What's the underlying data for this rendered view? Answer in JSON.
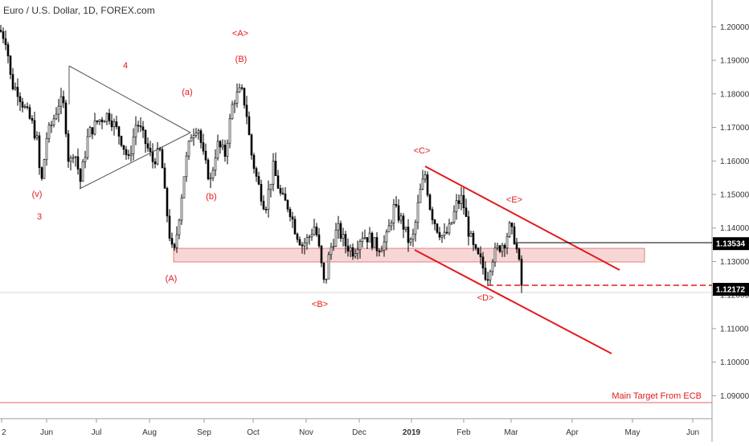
{
  "chart_data": {
    "type": "candlestick",
    "title": "Euro / U.S. Dollar, 1D, FOREX.com",
    "xlabels": [
      "2",
      "Jun",
      "Jul",
      "Aug",
      "Sep",
      "Oct",
      "Nov",
      "Dec",
      "2019",
      "Feb",
      "Mar",
      "Apr",
      "May",
      "Jun"
    ],
    "yticks": [
      "1.20000",
      "1.19000",
      "1.18000",
      "1.17000",
      "1.16000",
      "1.15000",
      "1.14000",
      "1.13000",
      "1.12000",
      "1.11000",
      "1.10000",
      "1.09000"
    ],
    "ylim": [
      1.0865,
      1.2032
    ],
    "price_badges": [
      {
        "label": "1.13534",
        "value": 1.13534,
        "bg": "#000000",
        "fg": "#ffffff"
      },
      {
        "label": "1.12172",
        "value": 1.12172,
        "bg": "#000000",
        "fg": "#ffffff"
      }
    ],
    "wave_labels": [
      "<A>",
      "(B)",
      "4",
      "(a)",
      "(v)",
      "3",
      "(b)",
      "(A)",
      "<B>",
      "<C>",
      "<E>",
      "<D>"
    ],
    "annotation_text": "Main Target From ECB",
    "target_level": 1.0905,
    "support_zone": [
      1.1305,
      1.1342
    ],
    "colors": {
      "candle": "#000000",
      "annotation": "#e31a1c",
      "zone": "#f4c5c5",
      "target_line": "#e06666",
      "grid_line": "#cccccc"
    }
  }
}
